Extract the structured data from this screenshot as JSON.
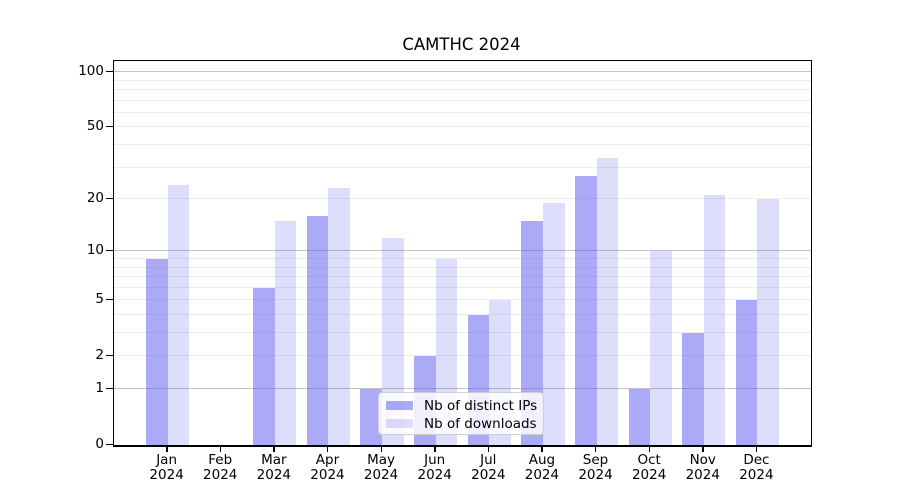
{
  "chart_data": {
    "type": "bar",
    "title": "CAMTHC 2024",
    "categories": [
      "Jan",
      "Feb",
      "Mar",
      "Apr",
      "May",
      "Jun",
      "Jul",
      "Aug",
      "Sep",
      "Oct",
      "Nov",
      "Dec"
    ],
    "category_year": "2024",
    "series": [
      {
        "name": "Nb of distinct IPs",
        "color": "rgba(85,85,240,0.5)",
        "values": [
          9,
          0,
          6,
          16,
          1,
          2,
          4,
          15,
          27,
          1,
          3,
          5
        ]
      },
      {
        "name": "Nb of downloads",
        "color": "rgba(85,85,240,0.2)",
        "values": [
          24,
          0,
          15,
          23,
          12,
          9,
          5,
          19,
          34,
          10,
          21,
          20
        ]
      }
    ],
    "xlabel": "",
    "ylabel": "",
    "yscale": "log1p",
    "ylim": [
      0,
      115
    ],
    "yticks": [
      100,
      50,
      20,
      10,
      5,
      2,
      1,
      0
    ],
    "major_gridlines": [
      1,
      10,
      100
    ],
    "minor_gridlines": [
      2,
      3,
      4,
      5,
      6,
      7,
      8,
      9,
      20,
      30,
      40,
      50,
      60,
      70,
      80,
      90
    ],
    "grid": true,
    "legend_position": "lower center"
  },
  "colors": {
    "axis": "#000000",
    "major_grid": "#c2c2c2",
    "minor_grid": "#ebebeb",
    "bar_dark_apparent": "#aaaaf7",
    "bar_light_apparent": "#ddddfc"
  }
}
